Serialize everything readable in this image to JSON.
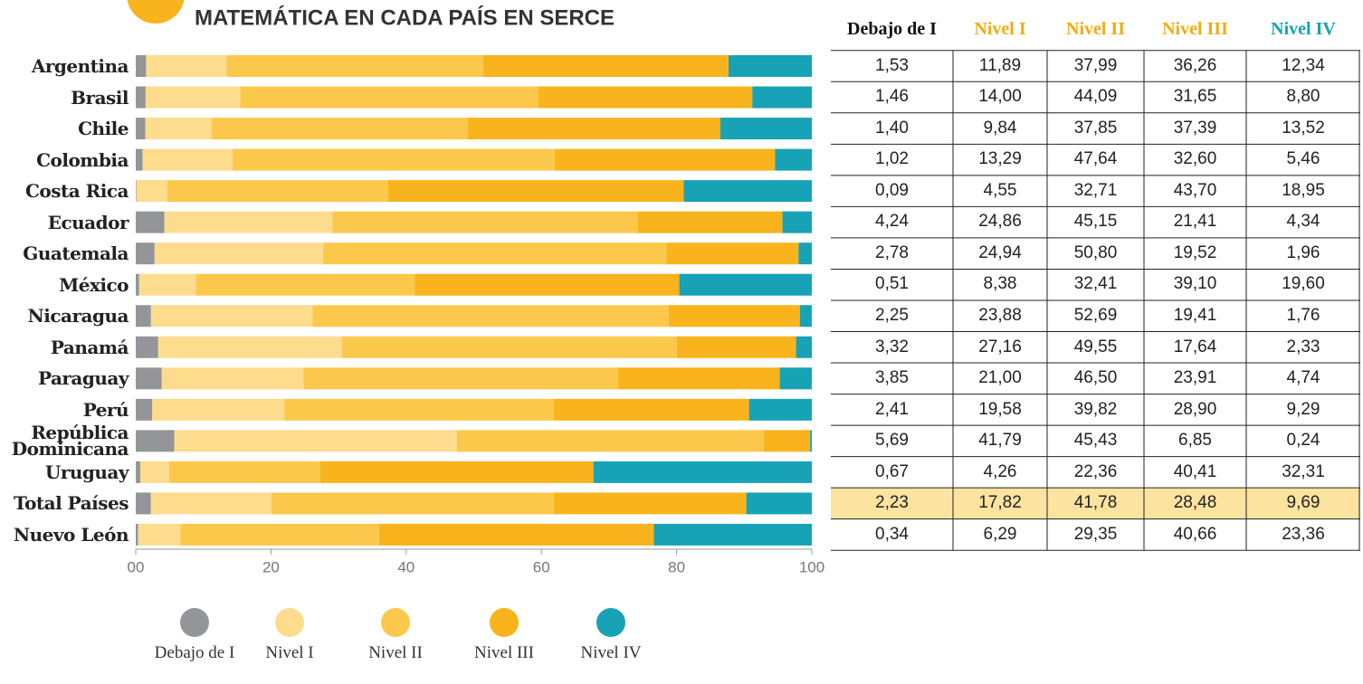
{
  "chart_data": {
    "type": "stacked_bar_horizontal",
    "title": "MATEMÁTICA EN CADA PAÍS EN SERCE",
    "categories": [
      "Argentina",
      "Brasil",
      "Chile",
      "Colombia",
      "Costa Rica",
      "Ecuador",
      "Guatemala",
      "México",
      "Nicaragua",
      "Panamá",
      "Paraguay",
      "Perú",
      "República Dominicana",
      "Uruguay",
      "Total Países",
      "Nuevo León"
    ],
    "series": [
      {
        "name": "Debajo de I",
        "color": "#939598",
        "values": [
          1.53,
          1.46,
          1.4,
          1.02,
          0.09,
          4.24,
          2.78,
          0.51,
          2.25,
          3.32,
          3.85,
          2.41,
          5.69,
          0.67,
          2.23,
          0.34
        ]
      },
      {
        "name": "Nivel I",
        "color": "#fddc8d",
        "values": [
          11.89,
          14.0,
          9.84,
          13.29,
          4.55,
          24.86,
          24.94,
          8.38,
          23.88,
          27.16,
          21.0,
          19.58,
          41.79,
          4.26,
          17.82,
          6.29
        ]
      },
      {
        "name": "Nivel II",
        "color": "#fcc84c",
        "values": [
          37.99,
          44.09,
          37.85,
          47.64,
          32.71,
          45.15,
          50.8,
          32.41,
          52.69,
          49.55,
          46.5,
          39.82,
          45.43,
          22.36,
          41.78,
          29.35
        ]
      },
      {
        "name": "Nivel III",
        "color": "#f9b31c",
        "values": [
          36.26,
          31.65,
          37.39,
          32.6,
          43.7,
          21.41,
          19.52,
          39.1,
          19.41,
          17.64,
          23.91,
          28.9,
          6.85,
          40.41,
          28.48,
          40.66
        ]
      },
      {
        "name": "Nivel IV",
        "color": "#17a3b5",
        "values": [
          12.34,
          8.8,
          13.52,
          5.46,
          18.95,
          4.34,
          1.96,
          19.6,
          1.76,
          2.33,
          4.74,
          9.29,
          0.24,
          32.31,
          9.69,
          23.36
        ]
      }
    ],
    "xlim": [
      0,
      100
    ],
    "xticks": [
      {
        "value": 0,
        "label": "00"
      },
      20,
      40,
      60,
      80,
      100
    ]
  },
  "table": {
    "header_colors": [
      "#111111",
      "#f5aa10",
      "#f5aa10",
      "#f5aa10",
      "#17a3b5"
    ],
    "highlight_row": 14,
    "highlight_color": "#fde3a0",
    "rows": [
      [
        "1,53",
        "11,89",
        "37,99",
        "36,26",
        "12,34"
      ],
      [
        "1,46",
        "14,00",
        "44,09",
        "31,65",
        "8,80"
      ],
      [
        "1,40",
        "9,84",
        "37,85",
        "37,39",
        "13,52"
      ],
      [
        "1,02",
        "13,29",
        "47,64",
        "32,60",
        "5,46"
      ],
      [
        "0,09",
        "4,55",
        "32,71",
        "43,70",
        "18,95"
      ],
      [
        "4,24",
        "24,86",
        "45,15",
        "21,41",
        "4,34"
      ],
      [
        "2,78",
        "24,94",
        "50,80",
        "19,52",
        "1,96"
      ],
      [
        "0,51",
        "8,38",
        "32,41",
        "39,10",
        "19,60"
      ],
      [
        "2,25",
        "23,88",
        "52,69",
        "19,41",
        "1,76"
      ],
      [
        "3,32",
        "27,16",
        "49,55",
        "17,64",
        "2,33"
      ],
      [
        "3,85",
        "21,00",
        "46,50",
        "23,91",
        "4,74"
      ],
      [
        "2,41",
        "19,58",
        "39,82",
        "28,90",
        "9,29"
      ],
      [
        "5,69",
        "41,79",
        "45,43",
        "6,85",
        "0,24"
      ],
      [
        "0,67",
        "4,26",
        "22,36",
        "40,41",
        "32,31"
      ],
      [
        "2,23",
        "17,82",
        "41,78",
        "28,48",
        "9,69"
      ],
      [
        "0,34",
        "6,29",
        "29,35",
        "40,66",
        "23,36"
      ]
    ]
  }
}
